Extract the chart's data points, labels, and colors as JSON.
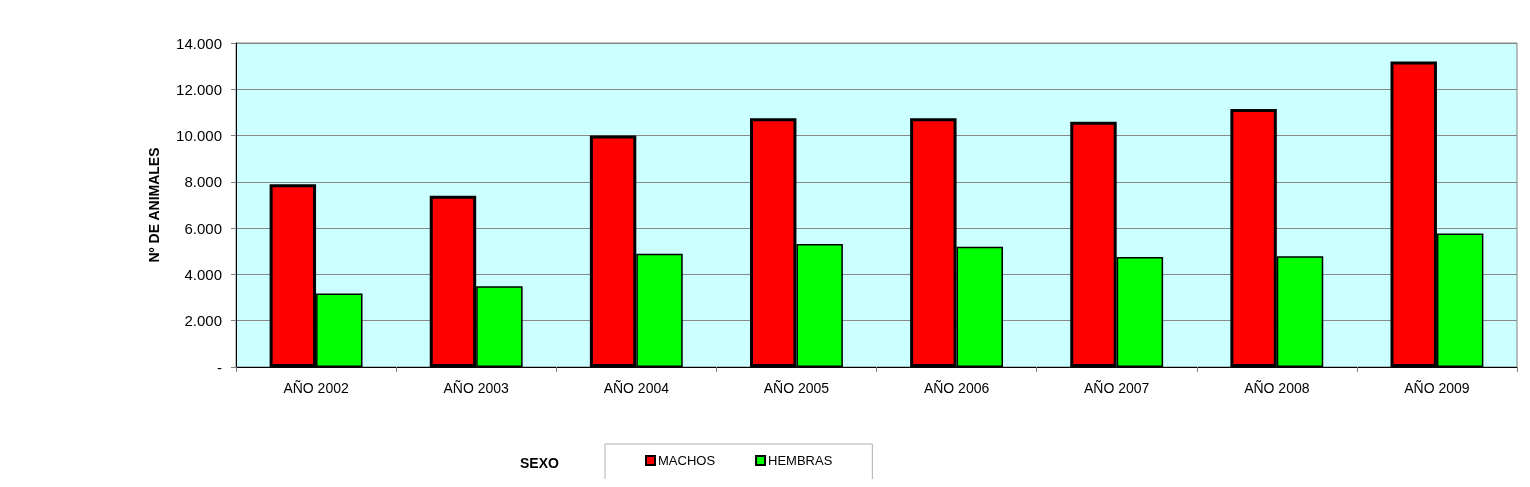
{
  "chart_data": {
    "type": "bar",
    "xlabel": "SEXO",
    "ylabel": "Nº DE ANIMALES",
    "categories": [
      "AÑO 2002",
      "AÑO 2003",
      "AÑO 2004",
      "AÑO 2005",
      "AÑO 2006",
      "AÑO 2007",
      "AÑO 2008",
      "AÑO 2009"
    ],
    "series": [
      {
        "name": "MACHOS",
        "color": "#ff0000",
        "values": [
          7900,
          7400,
          10000,
          10750,
          10750,
          10600,
          11150,
          13200
        ]
      },
      {
        "name": "HEMBRAS",
        "color": "#00ff00",
        "values": [
          3180,
          3490,
          4890,
          5320,
          5200,
          4750,
          4790,
          5770
        ]
      }
    ],
    "ylim": [
      0,
      14000
    ],
    "yticks": [
      {
        "value": 0,
        "label": "-"
      },
      {
        "value": 2000,
        "label": "2.000"
      },
      {
        "value": 4000,
        "label": "4.000"
      },
      {
        "value": 6000,
        "label": "6.000"
      },
      {
        "value": 8000,
        "label": "8.000"
      },
      {
        "value": 10000,
        "label": "10.000"
      },
      {
        "value": 12000,
        "label": "12.000"
      },
      {
        "value": 14000,
        "label": "14.000"
      }
    ],
    "grid": "y",
    "legend": "bottom"
  }
}
